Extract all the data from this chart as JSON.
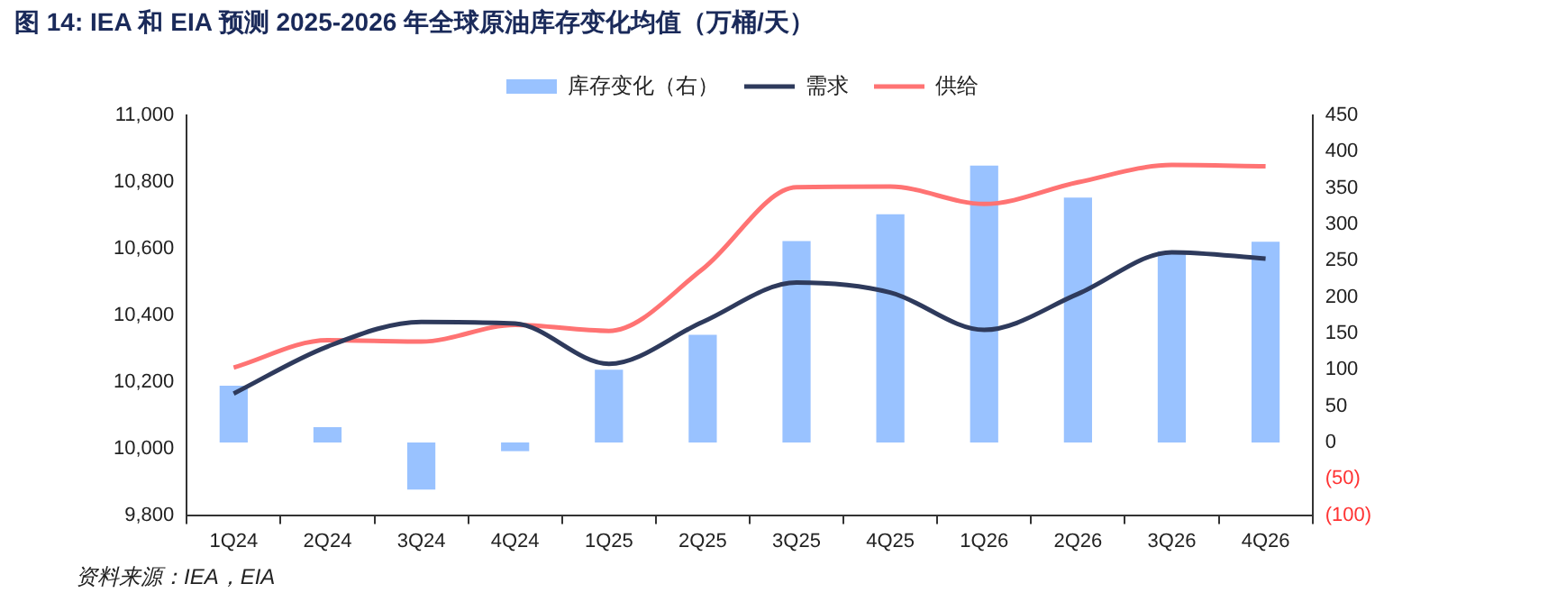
{
  "chart_data": {
    "type": "bar",
    "title": "图 14:  IEA 和 EIA 预测 2025-2026 年全球原油库存变化均值（万桶/天）",
    "categories": [
      "1Q24",
      "2Q24",
      "3Q24",
      "4Q24",
      "1Q25",
      "2Q25",
      "3Q25",
      "4Q25",
      "1Q26",
      "2Q26",
      "3Q26",
      "4Q26"
    ],
    "series": [
      {
        "name": "库存变化（右）",
        "axis": "y2",
        "color": "#99c2ff",
        "values": [
          78,
          21,
          -65,
          -12,
          100,
          148,
          277,
          314,
          381,
          337,
          263,
          276
        ]
      },
      {
        "name": "需求",
        "type": "line",
        "color": "#2e3a5c",
        "values": [
          10165,
          10306,
          10380,
          10375,
          10254,
          10380,
          10498,
          10468,
          10356,
          10464,
          10589,
          10570
        ]
      },
      {
        "name": "供给",
        "type": "line",
        "color": "#ff7373",
        "values": [
          10243,
          10325,
          10321,
          10371,
          10353,
          10539,
          10784,
          10786,
          10734,
          10799,
          10851,
          10847
        ]
      }
    ],
    "ylim": [
      9800,
      11000
    ],
    "yticks": [
      {
        "value": 9800,
        "label": "9,800"
      },
      {
        "value": 10000,
        "label": "10,000"
      },
      {
        "value": 10200,
        "label": "10,200"
      },
      {
        "value": 10400,
        "label": "10,400"
      },
      {
        "value": 10600,
        "label": "10,600"
      },
      {
        "value": 10800,
        "label": "10,800"
      },
      {
        "value": 11000,
        "label": "11,000"
      }
    ],
    "y2lim": [
      -100,
      450
    ],
    "y2ticks": [
      {
        "value": -100,
        "label": "(100)"
      },
      {
        "value": -50,
        "label": "(50)"
      },
      0,
      50,
      100,
      150,
      200,
      250,
      300,
      350,
      400,
      450
    ],
    "legend": "top",
    "grid": false,
    "annotations": [
      "资料来源：IEA，EIA"
    ]
  }
}
